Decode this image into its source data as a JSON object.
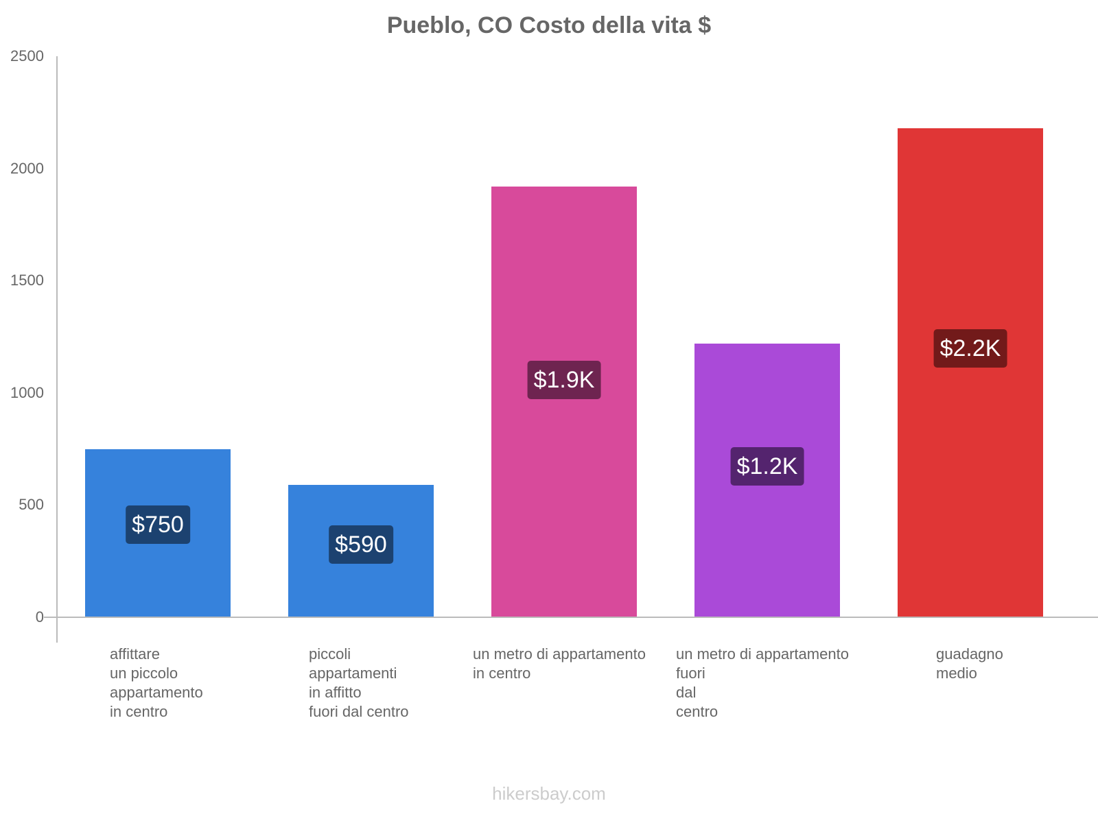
{
  "chart_data": {
    "type": "bar",
    "title": "Pueblo, CO Costo della vita $",
    "xlabel": "",
    "ylabel": "",
    "ylim": [
      0,
      2500
    ],
    "yticks": [
      0,
      500,
      1000,
      1500,
      2000,
      2500
    ],
    "grid": false,
    "legend": null,
    "categories": [
      "affittare un piccolo appartamento in centro",
      "piccoli appartamenti in affitto fuori dal centro",
      "un metro di appartamento in centro",
      "un metro di appartamento fuori dal centro",
      "guadagno medio"
    ],
    "values": [
      750,
      590,
      1920,
      1220,
      2180
    ],
    "data_labels": [
      "$750",
      "$590",
      "$1.9K",
      "$1.2K",
      "$2.2K"
    ],
    "colors": [
      "#3682dc",
      "#3682dc",
      "#d84a9b",
      "#aa4ad8",
      "#e03636"
    ],
    "label_colors": [
      "#1c4270",
      "#1c4270",
      "#6e2450",
      "#54246e",
      "#721a1a"
    ]
  },
  "header": {
    "title": "Pueblo, CO Costo della vita $"
  },
  "axis": {
    "yticks": [
      "0",
      "500",
      "1000",
      "1500",
      "2000",
      "2500"
    ]
  },
  "bars": [
    {
      "label_lines": "affittare\nun piccolo\nappartamento\nin centro",
      "value_label": "$750"
    },
    {
      "label_lines": "piccoli\nappartamenti\nin affitto\nfuori dal centro",
      "value_label": "$590"
    },
    {
      "label_lines": "un metro di appartamento\nin centro",
      "value_label": "$1.9K"
    },
    {
      "label_lines": "un metro di appartamento\nfuori\ndal\ncentro",
      "value_label": "$1.2K"
    },
    {
      "label_lines": "guadagno\nmedio",
      "value_label": "$2.2K"
    }
  ],
  "footer": {
    "watermark": "hikersbay.com"
  }
}
